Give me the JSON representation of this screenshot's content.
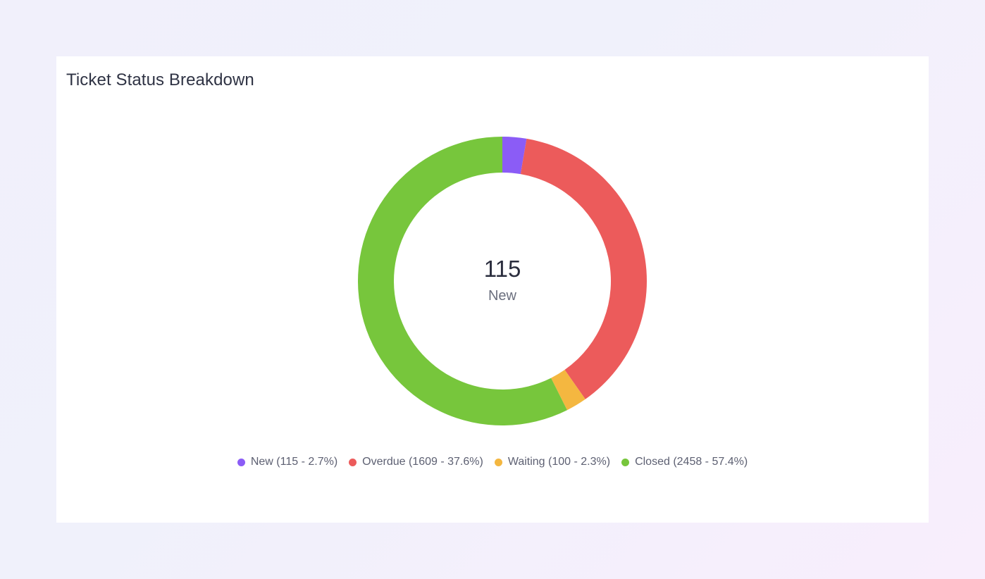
{
  "card": {
    "title": "Ticket Status Breakdown"
  },
  "center": {
    "value": "115",
    "label": "New"
  },
  "chart_data": {
    "type": "pie",
    "title": "Ticket Status Breakdown",
    "donut": true,
    "slices": [
      {
        "name": "New",
        "value": 115,
        "percent": 2.7,
        "color": "#8b5cf6",
        "legend": "New (115 - 2.7%)"
      },
      {
        "name": "Overdue",
        "value": 1609,
        "percent": 37.6,
        "color": "#ec5b5b",
        "legend": "Overdue (1609 - 37.6%)"
      },
      {
        "name": "Waiting",
        "value": 100,
        "percent": 2.3,
        "color": "#f4b740",
        "legend": "Waiting (100 - 2.3%)"
      },
      {
        "name": "Closed",
        "value": 2458,
        "percent": 57.4,
        "color": "#77c63c",
        "legend": "Closed (2458 - 57.4%)"
      }
    ],
    "legend_position": "bottom-center"
  }
}
